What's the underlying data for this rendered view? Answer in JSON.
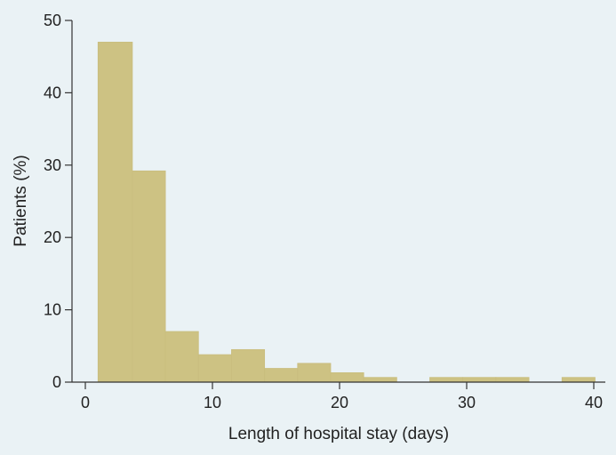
{
  "chart_data": {
    "type": "bar",
    "title": "",
    "xlabel": "Length of hospital stay (days)",
    "ylabel": "Patients (%)",
    "xlim": [
      0,
      40
    ],
    "ylim": [
      0,
      50
    ],
    "x_ticks": [
      0,
      10,
      20,
      30,
      40
    ],
    "y_ticks": [
      0,
      10,
      20,
      30,
      40,
      50
    ],
    "grid": false,
    "legend": "none",
    "bar_color": "#cdc283",
    "background_color": "#eaf2f5",
    "bins": [
      {
        "x0": 1.0,
        "x1": 3.7,
        "value": 47.0
      },
      {
        "x0": 3.7,
        "x1": 6.3,
        "value": 29.2
      },
      {
        "x0": 6.3,
        "x1": 8.9,
        "value": 7.0
      },
      {
        "x0": 8.9,
        "x1": 11.5,
        "value": 3.8
      },
      {
        "x0": 11.5,
        "x1": 14.1,
        "value": 4.5
      },
      {
        "x0": 14.1,
        "x1": 16.7,
        "value": 1.9
      },
      {
        "x0": 16.7,
        "x1": 19.3,
        "value": 2.6
      },
      {
        "x0": 19.3,
        "x1": 21.9,
        "value": 1.3
      },
      {
        "x0": 21.9,
        "x1": 24.5,
        "value": 0.65
      },
      {
        "x0": 24.5,
        "x1": 27.1,
        "value": 0
      },
      {
        "x0": 27.1,
        "x1": 29.7,
        "value": 0.65
      },
      {
        "x0": 29.7,
        "x1": 32.3,
        "value": 0.65
      },
      {
        "x0": 32.3,
        "x1": 34.9,
        "value": 0.65
      },
      {
        "x0": 34.9,
        "x1": 37.5,
        "value": 0
      },
      {
        "x0": 37.5,
        "x1": 40.1,
        "value": 0.65
      }
    ]
  }
}
